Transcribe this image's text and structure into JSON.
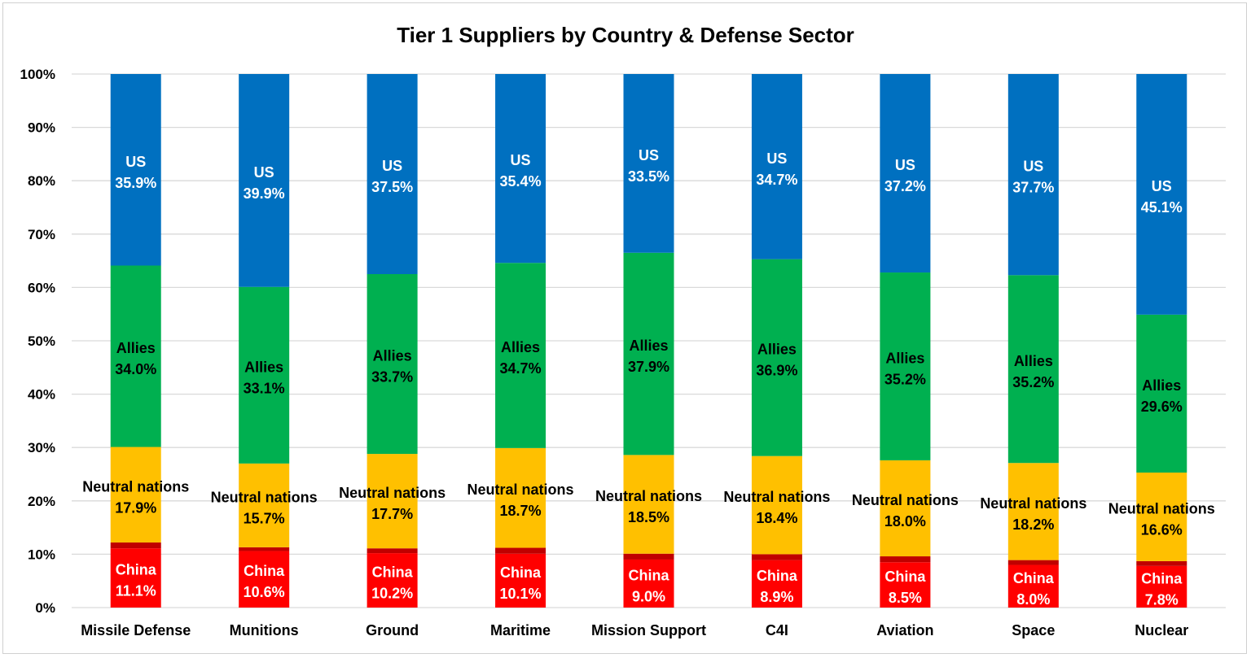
{
  "chart_data": {
    "type": "bar",
    "stacked": true,
    "title": "Tier 1 Suppliers by Country & Defense Sector",
    "xlabel": "",
    "ylabel": "",
    "ylim": [
      0,
      100
    ],
    "yticks": [
      "0%",
      "10%",
      "20%",
      "30%",
      "40%",
      "50%",
      "60%",
      "70%",
      "80%",
      "90%",
      "100%"
    ],
    "grid": true,
    "legend": "none",
    "categories": [
      "Missile Defense",
      "Munitions",
      "Ground",
      "Maritime",
      "Mission Support",
      "C4I",
      "Aviation",
      "Space",
      "Nuclear"
    ],
    "series": [
      {
        "name": "China",
        "color": "#ff0000",
        "label_color": "#ffffff",
        "values": [
          11.1,
          10.6,
          10.2,
          10.1,
          9.0,
          8.9,
          8.5,
          8.0,
          7.8
        ],
        "labels": [
          "11.1%",
          "10.6%",
          "10.2%",
          "10.1%",
          "9.0%",
          "8.9%",
          "8.5%",
          "8.0%",
          "7.8%"
        ]
      },
      {
        "name": "",
        "color": "#c00000",
        "values": [
          1.1,
          0.7,
          0.9,
          1.1,
          1.1,
          1.1,
          1.1,
          0.9,
          0.9
        ]
      },
      {
        "name": "Neutral nations",
        "color": "#ffc000",
        "label_color": "#000000",
        "values": [
          17.9,
          15.7,
          17.7,
          18.7,
          18.5,
          18.4,
          18.0,
          18.2,
          16.6
        ],
        "labels": [
          "17.9%",
          "15.7%",
          "17.7%",
          "18.7%",
          "18.5%",
          "18.4%",
          "18.0%",
          "18.2%",
          "16.6%"
        ]
      },
      {
        "name": "Allies",
        "color": "#00b050",
        "label_color": "#000000",
        "values": [
          34.0,
          33.1,
          33.7,
          34.7,
          37.9,
          36.9,
          35.2,
          35.2,
          29.6
        ],
        "labels": [
          "34.0%",
          "33.1%",
          "33.7%",
          "34.7%",
          "37.9%",
          "36.9%",
          "35.2%",
          "35.2%",
          "29.6%"
        ]
      },
      {
        "name": "US",
        "color": "#0070c0",
        "label_color": "#ffffff",
        "values": [
          35.9,
          39.9,
          37.5,
          35.4,
          33.5,
          34.7,
          37.2,
          37.7,
          45.1
        ],
        "labels": [
          "35.9%",
          "39.9%",
          "37.5%",
          "35.4%",
          "33.5%",
          "34.7%",
          "37.2%",
          "37.7%",
          "45.1%"
        ]
      }
    ]
  }
}
